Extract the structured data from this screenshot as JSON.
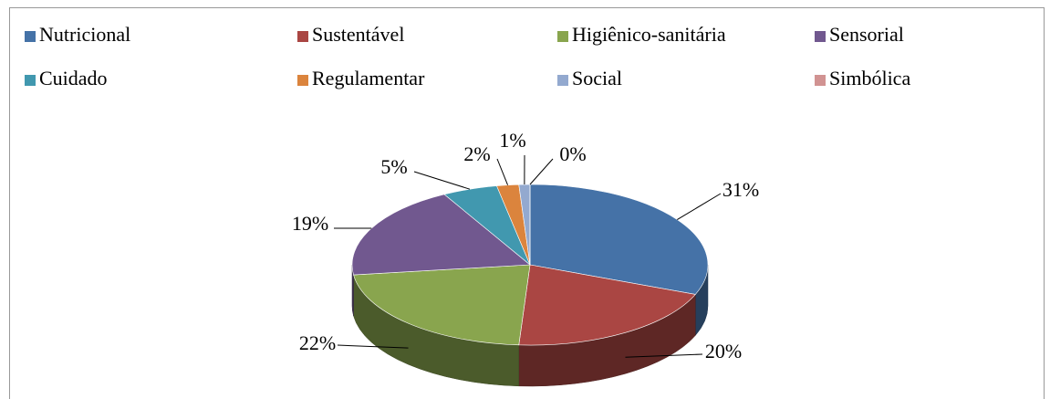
{
  "chart_data": {
    "type": "pie",
    "categories": [
      "Nutricional",
      "Sustentável",
      "Higiênico-sanitária",
      "Sensorial",
      "Cuidado",
      "Regulamentar",
      "Social",
      "Simbólica"
    ],
    "values": [
      31,
      20,
      22,
      19,
      5,
      2,
      1,
      0
    ],
    "value_labels": [
      "31%",
      "20%",
      "22%",
      "19%",
      "5%",
      "2%",
      "1%",
      "0%"
    ],
    "colors": [
      "#4572a7",
      "#aa4643",
      "#89a54e",
      "#71588f",
      "#4198af",
      "#db843d",
      "#93a9cf",
      "#d19392"
    ],
    "legend": "top"
  }
}
